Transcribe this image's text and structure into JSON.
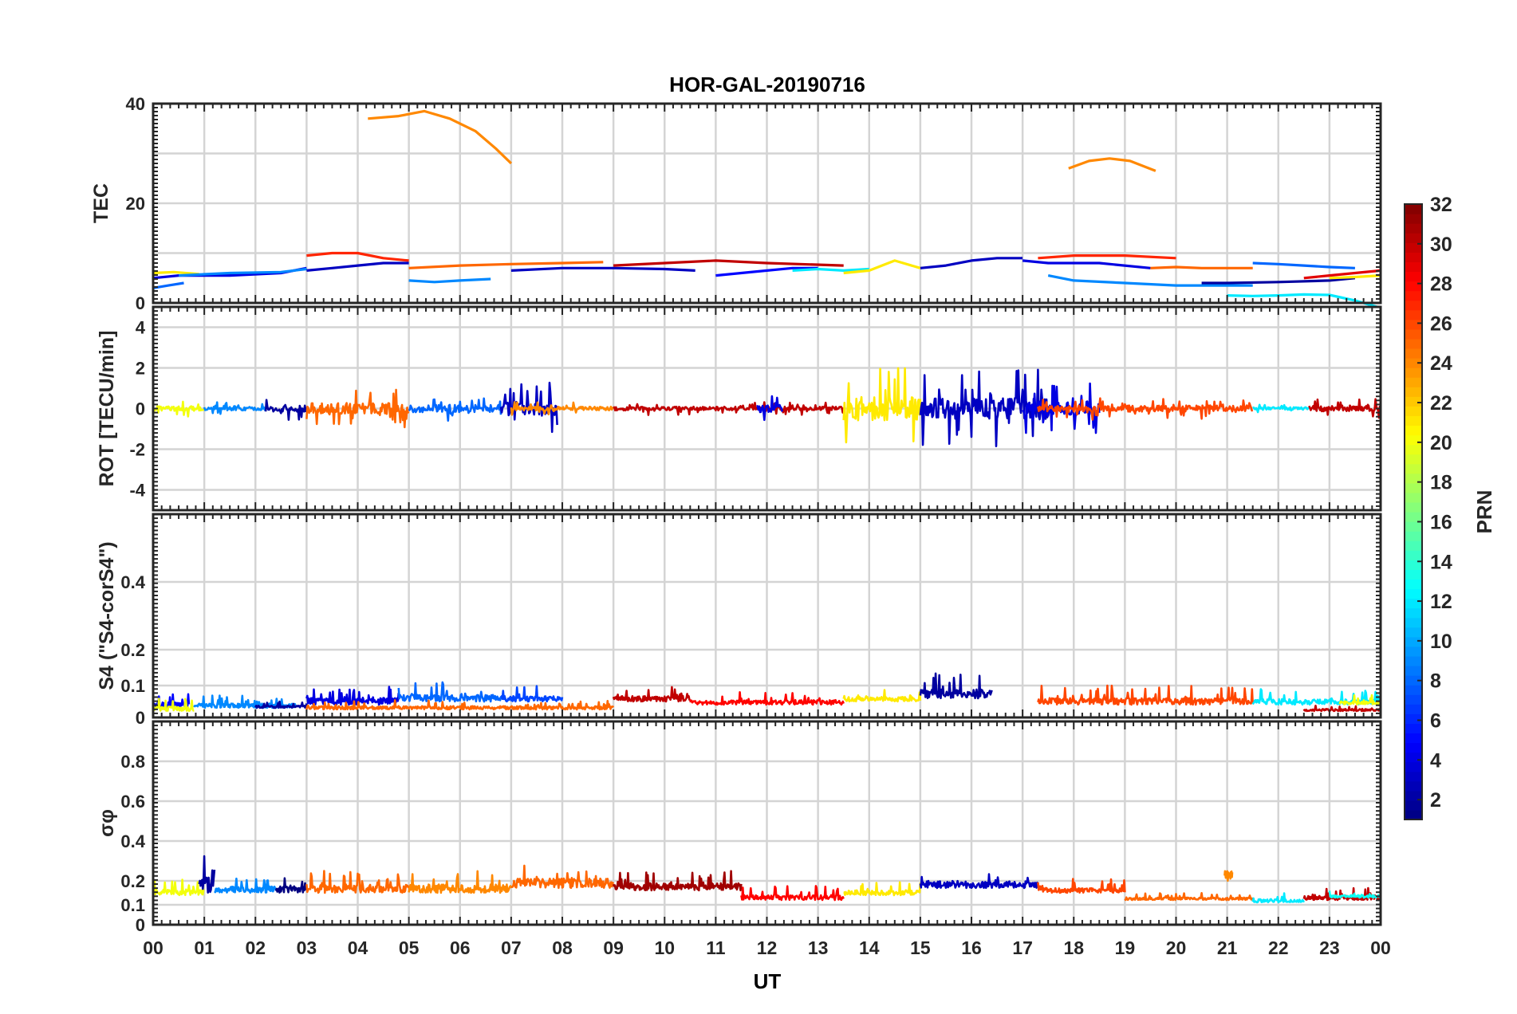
{
  "chart_data": {
    "type": "line",
    "title": "HOR-GAL-20190716",
    "xlabel": "UT",
    "x_ticks": [
      "00",
      "01",
      "02",
      "03",
      "04",
      "05",
      "06",
      "07",
      "08",
      "09",
      "10",
      "11",
      "12",
      "13",
      "14",
      "15",
      "16",
      "17",
      "18",
      "19",
      "20",
      "21",
      "22",
      "23",
      "00"
    ],
    "xlim": [
      0,
      24
    ],
    "panels": [
      {
        "id": "tec",
        "ylabel": "TEC",
        "ylim": [
          0,
          40
        ],
        "y_ticks": [
          "0",
          "20",
          "40"
        ],
        "y_tick_values": [
          0,
          20,
          40
        ],
        "grid_values": [
          0,
          10,
          20,
          30,
          40
        ],
        "series": [
          {
            "prn": 24,
            "x": [
              4.2,
              4.8,
              5.3,
              5.8,
              6.3,
              6.7,
              7.0
            ],
            "y": [
              37,
              37.5,
              38.5,
              37,
              34.5,
              31,
              28
            ]
          },
          {
            "prn": 24,
            "x": [
              17.9,
              18.3,
              18.7,
              19.1,
              19.6
            ],
            "y": [
              27,
              28.5,
              29,
              28.5,
              26.5
            ]
          },
          {
            "prn": 21,
            "x": [
              0.0,
              0.4,
              0.9
            ],
            "y": [
              6,
              6.2,
              5.8
            ]
          },
          {
            "prn": 4,
            "x": [
              0.0,
              0.5,
              1.5,
              2.5,
              3.0
            ],
            "y": [
              5,
              5.5,
              5.5,
              6,
              7
            ]
          },
          {
            "prn": 8,
            "x": [
              0.0,
              0.3,
              0.6
            ],
            "y": [
              3,
              3.5,
              4
            ]
          },
          {
            "prn": 9,
            "x": [
              0.5,
              1.5,
              2.5,
              3.0
            ],
            "y": [
              5.5,
              6,
              6.2,
              6.8
            ]
          },
          {
            "prn": 27,
            "x": [
              3.0,
              3.5,
              4.0,
              4.5,
              5.0
            ],
            "y": [
              9.5,
              10,
              10,
              9,
              8.5
            ]
          },
          {
            "prn": 3,
            "x": [
              3.0,
              3.5,
              4.0,
              4.5,
              5.0
            ],
            "y": [
              6.5,
              7,
              7.5,
              8,
              8
            ]
          },
          {
            "prn": 25,
            "x": [
              5.0,
              6.0,
              7.0,
              8.0,
              8.8
            ],
            "y": [
              7,
              7.5,
              7.8,
              8,
              8.2
            ]
          },
          {
            "prn": 9,
            "x": [
              5.0,
              5.5,
              6.0,
              6.6
            ],
            "y": [
              4.5,
              4.2,
              4.5,
              4.8
            ]
          },
          {
            "prn": 3,
            "x": [
              7.0,
              8.0,
              9.0,
              10.0,
              10.6
            ],
            "y": [
              6.5,
              7,
              7,
              6.8,
              6.5
            ]
          },
          {
            "prn": 30,
            "x": [
              9.0,
              10.0,
              11.0,
              12.0,
              13.5
            ],
            "y": [
              7.5,
              8,
              8.5,
              8,
              7.5
            ]
          },
          {
            "prn": 5,
            "x": [
              11.0,
              11.5,
              12.0,
              12.5,
              13.0
            ],
            "y": [
              5.5,
              6,
              6.5,
              7,
              7
            ]
          },
          {
            "prn": 12,
            "x": [
              12.5,
              13.0,
              13.5,
              14.0
            ],
            "y": [
              6.5,
              6.8,
              6.5,
              6.8
            ]
          },
          {
            "prn": 21,
            "x": [
              13.5,
              14.0,
              14.5,
              15.0
            ],
            "y": [
              6,
              6.5,
              8.5,
              7
            ]
          },
          {
            "prn": 3,
            "x": [
              15.0,
              15.5,
              16.0,
              16.5,
              17.0
            ],
            "y": [
              7,
              7.5,
              8.5,
              9,
              9
            ]
          },
          {
            "prn": 4,
            "x": [
              17.0,
              17.5,
              18.5,
              19.5
            ],
            "y": [
              8.5,
              8,
              8,
              7
            ]
          },
          {
            "prn": 27,
            "x": [
              17.3,
              18.0,
              19.0,
              20.0
            ],
            "y": [
              9,
              9.5,
              9.5,
              9
            ]
          },
          {
            "prn": 25,
            "x": [
              19.5,
              20.0,
              20.5,
              21.5
            ],
            "y": [
              7,
              7.2,
              7,
              7
            ]
          },
          {
            "prn": 9,
            "x": [
              17.5,
              18.0,
              19.0,
              20.0,
              21.0,
              21.5
            ],
            "y": [
              5.5,
              4.5,
              4,
              3.5,
              3.5,
              3.5
            ]
          },
          {
            "prn": 8,
            "x": [
              21.5,
              22.0,
              22.5,
              23.0,
              23.5
            ],
            "y": [
              8,
              7.8,
              7.5,
              7.2,
              7
            ]
          },
          {
            "prn": 2,
            "x": [
              20.5,
              21.0,
              22.0,
              23.0,
              23.5
            ],
            "y": [
              4,
              4,
              4.2,
              4.5,
              5
            ]
          },
          {
            "prn": 12,
            "x": [
              21.0,
              21.5,
              22.0,
              22.5,
              23.0,
              23.5,
              24.0
            ],
            "y": [
              1.5,
              1.4,
              1.5,
              1.7,
              1.6,
              0.5,
              -1
            ]
          },
          {
            "prn": 29,
            "x": [
              22.5,
              23.0,
              23.5,
              24.0
            ],
            "y": [
              5,
              5.5,
              6,
              6.5
            ]
          },
          {
            "prn": 21,
            "x": [
              23.0,
              23.5,
              24.0
            ],
            "y": [
              5,
              5.2,
              5.5
            ]
          }
        ]
      },
      {
        "id": "rot",
        "ylabel": "ROT [TECU/min]",
        "ylim": [
          -5,
          5
        ],
        "y_ticks": [
          "-4",
          "-2",
          "0",
          "2",
          "4"
        ],
        "y_tick_values": [
          -4,
          -2,
          0,
          2,
          4
        ],
        "grid_values": [
          -4,
          -2,
          0,
          2,
          4
        ],
        "series": [
          {
            "prn": 20,
            "t0": 0.0,
            "t1": 1.0,
            "amp": 0.25,
            "seed": 1
          },
          {
            "prn": 9,
            "t0": 1.0,
            "t1": 2.2,
            "amp": 0.2,
            "seed": 2
          },
          {
            "prn": 2,
            "t0": 2.2,
            "t1": 3.0,
            "amp": 0.35,
            "seed": 3
          },
          {
            "prn": 25,
            "t0": 3.0,
            "t1": 5.0,
            "amp": 0.6,
            "seed": 4
          },
          {
            "prn": 8,
            "t0": 5.0,
            "t1": 6.8,
            "amp": 0.4,
            "seed": 5
          },
          {
            "prn": 3,
            "t0": 6.8,
            "t1": 7.9,
            "amp": 0.8,
            "seed": 6
          },
          {
            "prn": 24,
            "t0": 7.0,
            "t1": 9.0,
            "amp": 0.2,
            "seed": 7
          },
          {
            "prn": 30,
            "t0": 9.0,
            "t1": 13.5,
            "amp": 0.2,
            "seed": 8
          },
          {
            "prn": 4,
            "t0": 11.8,
            "t1": 12.3,
            "amp": 0.4,
            "seed": 9
          },
          {
            "prn": 21,
            "t0": 13.5,
            "t1": 15.0,
            "amp": 1.3,
            "seed": 10
          },
          {
            "prn": 3,
            "t0": 15.0,
            "t1": 17.5,
            "amp": 1.2,
            "seed": 11
          },
          {
            "prn": 4,
            "t0": 17.0,
            "t1": 18.5,
            "amp": 0.8,
            "seed": 12
          },
          {
            "prn": 26,
            "t0": 17.3,
            "t1": 21.5,
            "amp": 0.35,
            "seed": 13
          },
          {
            "prn": 12,
            "t0": 21.5,
            "t1": 22.6,
            "amp": 0.15,
            "seed": 14
          },
          {
            "prn": 30,
            "t0": 22.6,
            "t1": 24.0,
            "amp": 0.3,
            "seed": 15
          }
        ]
      },
      {
        "id": "s4",
        "ylabel": "S4 (\"S4-corS4\")",
        "ylim": [
          0,
          0.6
        ],
        "y_ticks": [
          "0",
          "0.1",
          "0.2",
          "0.4"
        ],
        "y_tick_values": [
          0,
          0.1,
          0.2,
          0.4
        ],
        "grid_values": [
          0,
          0.1,
          0.2,
          0.4
        ],
        "series": [
          {
            "prn": 5,
            "t0": 0.0,
            "t1": 0.7,
            "base": 0.03,
            "amp": 0.05,
            "seed": 21
          },
          {
            "prn": 20,
            "t0": 0.0,
            "t1": 0.8,
            "base": 0.02,
            "amp": 0.04,
            "seed": 22
          },
          {
            "prn": 9,
            "t0": 0.8,
            "t1": 2.8,
            "base": 0.03,
            "amp": 0.04,
            "seed": 23
          },
          {
            "prn": 2,
            "t0": 2.0,
            "t1": 3.0,
            "base": 0.03,
            "amp": 0.02,
            "seed": 24
          },
          {
            "prn": 4,
            "t0": 3.0,
            "t1": 4.8,
            "base": 0.04,
            "amp": 0.06,
            "seed": 25
          },
          {
            "prn": 25,
            "t0": 3.0,
            "t1": 9.0,
            "base": 0.025,
            "amp": 0.03,
            "seed": 26
          },
          {
            "prn": 8,
            "t0": 4.8,
            "t1": 6.8,
            "base": 0.05,
            "amp": 0.06,
            "seed": 27
          },
          {
            "prn": 7,
            "t0": 6.8,
            "t1": 8.0,
            "base": 0.05,
            "amp": 0.05,
            "seed": 28
          },
          {
            "prn": 30,
            "t0": 9.0,
            "t1": 10.5,
            "base": 0.05,
            "amp": 0.05,
            "seed": 29
          },
          {
            "prn": 28,
            "t0": 10.5,
            "t1": 13.5,
            "base": 0.04,
            "amp": 0.04,
            "seed": 30
          },
          {
            "prn": 21,
            "t0": 13.5,
            "t1": 15.0,
            "base": 0.05,
            "amp": 0.04,
            "seed": 31
          },
          {
            "prn": 2,
            "t0": 15.0,
            "t1": 16.4,
            "base": 0.06,
            "amp": 0.08,
            "seed": 32
          },
          {
            "prn": 26,
            "t0": 17.3,
            "t1": 21.5,
            "base": 0.04,
            "amp": 0.06,
            "seed": 33
          },
          {
            "prn": 12,
            "t0": 21.5,
            "t1": 24.0,
            "base": 0.04,
            "amp": 0.05,
            "seed": 34
          },
          {
            "prn": 20,
            "t0": 23.2,
            "t1": 24.0,
            "base": 0.04,
            "amp": 0.03,
            "seed": 35
          },
          {
            "prn": 30,
            "t0": 22.5,
            "t1": 24.0,
            "base": 0.02,
            "amp": 0.02,
            "seed": 36
          }
        ]
      },
      {
        "id": "sigma",
        "ylabel": "σφ",
        "ylim": [
          0,
          1
        ],
        "y_ticks": [
          "0",
          "0.1",
          "0.2",
          "0.4",
          "0.6",
          "0.8"
        ],
        "y_tick_values": [
          0,
          0.1,
          0.2,
          0.4,
          0.6,
          0.8
        ],
        "grid_values": [
          0,
          0.1,
          0.2,
          0.4,
          0.6,
          0.8
        ],
        "series": [
          {
            "prn": 20,
            "t0": 0.0,
            "t1": 1.0,
            "base": 0.14,
            "amp": 0.07,
            "seed": 41
          },
          {
            "prn": 2,
            "t0": 0.9,
            "t1": 1.2,
            "base": 0.15,
            "amp": 0.2,
            "seed": 42
          },
          {
            "prn": 9,
            "t0": 1.2,
            "t1": 2.4,
            "base": 0.15,
            "amp": 0.08,
            "seed": 43
          },
          {
            "prn": 1,
            "t0": 2.4,
            "t1": 3.0,
            "base": 0.15,
            "amp": 0.08,
            "seed": 44
          },
          {
            "prn": 25,
            "t0": 3.0,
            "t1": 5.0,
            "base": 0.15,
            "amp": 0.1,
            "seed": 45
          },
          {
            "prn": 24,
            "t0": 5.0,
            "t1": 7.0,
            "base": 0.15,
            "amp": 0.1,
            "seed": 46
          },
          {
            "prn": 25,
            "t0": 7.0,
            "t1": 9.0,
            "base": 0.17,
            "amp": 0.12,
            "seed": 47
          },
          {
            "prn": 31,
            "t0": 9.0,
            "t1": 11.5,
            "base": 0.16,
            "amp": 0.09,
            "seed": 48
          },
          {
            "prn": 28,
            "t0": 11.5,
            "t1": 13.5,
            "base": 0.12,
            "amp": 0.06,
            "seed": 49
          },
          {
            "prn": 21,
            "t0": 13.5,
            "t1": 15.0,
            "base": 0.14,
            "amp": 0.06,
            "seed": 50
          },
          {
            "prn": 3,
            "t0": 15.0,
            "t1": 17.3,
            "base": 0.17,
            "amp": 0.08,
            "seed": 51
          },
          {
            "prn": 26,
            "t0": 17.3,
            "t1": 19.0,
            "base": 0.15,
            "amp": 0.06,
            "seed": 52
          },
          {
            "prn": 25,
            "t0": 19.0,
            "t1": 21.5,
            "base": 0.12,
            "amp": 0.03,
            "seed": 53
          },
          {
            "prn": 24,
            "t0": 20.95,
            "t1": 21.1,
            "base": 0.2,
            "amp": 0.15,
            "seed": 54
          },
          {
            "prn": 12,
            "t0": 21.5,
            "t1": 22.5,
            "base": 0.11,
            "amp": 0.04,
            "seed": 55
          },
          {
            "prn": 30,
            "t0": 22.5,
            "t1": 24.0,
            "base": 0.12,
            "amp": 0.05,
            "seed": 56
          },
          {
            "prn": 13,
            "t0": 23.0,
            "t1": 24.0,
            "base": 0.13,
            "amp": 0.03,
            "seed": 57
          }
        ]
      }
    ],
    "colorbar": {
      "label": "PRN",
      "range": [
        1,
        32
      ],
      "ticks": [
        "2",
        "4",
        "6",
        "8",
        "10",
        "12",
        "14",
        "16",
        "18",
        "20",
        "22",
        "24",
        "26",
        "28",
        "30",
        "32"
      ],
      "tick_values": [
        2,
        4,
        6,
        8,
        10,
        12,
        14,
        16,
        18,
        20,
        22,
        24,
        26,
        28,
        30,
        32
      ],
      "colormap": "jet"
    }
  }
}
